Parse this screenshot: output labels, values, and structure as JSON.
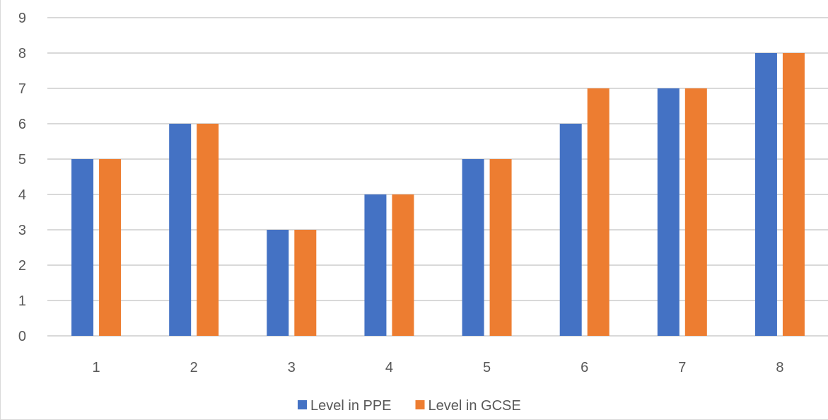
{
  "chart_data": {
    "type": "bar",
    "categories": [
      "1",
      "2",
      "3",
      "4",
      "5",
      "6",
      "7",
      "8"
    ],
    "series": [
      {
        "name": "Level in PPE",
        "values": [
          5,
          6,
          3,
          4,
          5,
          6,
          7,
          8
        ],
        "color": "#4472c4"
      },
      {
        "name": "Level in GCSE",
        "values": [
          5,
          6,
          3,
          4,
          5,
          7,
          7,
          8
        ],
        "color": "#ed7d31"
      }
    ],
    "y_ticks": [
      "0",
      "1",
      "2",
      "3",
      "4",
      "5",
      "6",
      "7",
      "8",
      "9"
    ],
    "ylim": [
      0,
      9
    ],
    "title": "",
    "xlabel": "",
    "ylabel": "",
    "grid": true,
    "legend_position": "bottom"
  }
}
